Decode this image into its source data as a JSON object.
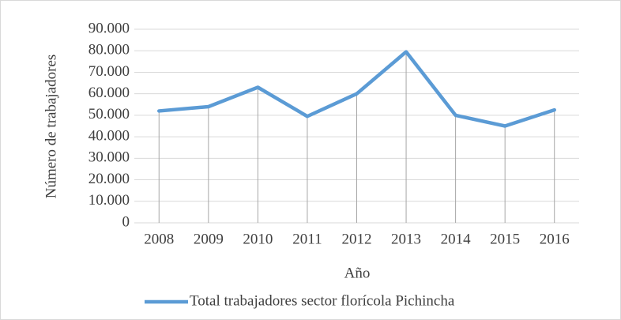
{
  "chart_data": {
    "type": "line",
    "x_label": "Año",
    "y_label": "Número de trabajadores",
    "categories": [
      "2008",
      "2009",
      "2010",
      "2011",
      "2012",
      "2013",
      "2014",
      "2015",
      "2016"
    ],
    "series": [
      {
        "name": "Total trabajadores sector florícola Pichincha",
        "color": "#5b9bd5",
        "values": [
          52000,
          54000,
          63000,
          49500,
          60000,
          79500,
          50000,
          45000,
          52500
        ]
      }
    ],
    "ylim": [
      0,
      90000
    ],
    "yticks": [
      0,
      {
        "value": 10000,
        "label": "10.000"
      },
      {
        "value": 20000,
        "label": "20.000"
      },
      {
        "value": 30000,
        "label": "30.000"
      },
      {
        "value": 40000,
        "label": "40.000"
      },
      {
        "value": 50000,
        "label": "50.000"
      },
      {
        "value": 60000,
        "label": "60.000"
      },
      {
        "value": 70000,
        "label": "70.000"
      },
      {
        "value": 80000,
        "label": "80.000"
      },
      {
        "value": 90000,
        "label": "90.000"
      }
    ],
    "grid": true,
    "drop_lines": true,
    "legend": "bottom"
  }
}
